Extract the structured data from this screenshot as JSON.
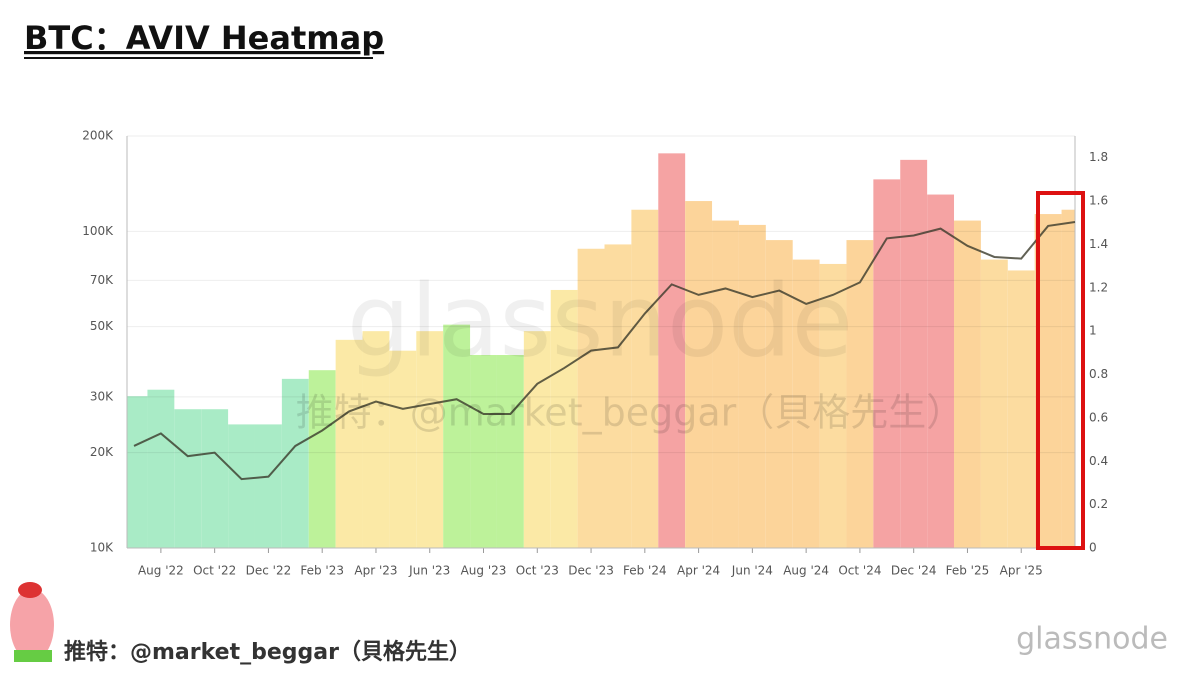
{
  "title": "BTC：AVIV Heatmap",
  "handle": "推特：@market_beggar（貝格先生）",
  "brand": "glassnode",
  "chart_data": {
    "type": "line",
    "x": [
      "2022-07",
      "2022-08",
      "2022-09",
      "2022-10",
      "2022-11",
      "2022-12",
      "2023-01",
      "2023-02",
      "2023-03",
      "2023-04",
      "2023-05",
      "2023-06",
      "2023-07",
      "2023-08",
      "2023-09",
      "2023-10",
      "2023-11",
      "2023-12",
      "2024-01",
      "2024-02",
      "2024-03",
      "2024-04",
      "2024-05",
      "2024-06",
      "2024-07",
      "2024-08",
      "2024-09",
      "2024-10",
      "2024-11",
      "2024-12",
      "2025-01",
      "2025-02",
      "2025-03",
      "2025-04",
      "2025-05",
      "2025-06"
    ],
    "xticks": [
      {
        "value": "2022-08",
        "label": "Aug '22"
      },
      {
        "value": "2022-10",
        "label": "Oct '22"
      },
      {
        "value": "2022-12",
        "label": "Dec '22"
      },
      {
        "value": "2023-02",
        "label": "Feb '23"
      },
      {
        "value": "2023-04",
        "label": "Apr '23"
      },
      {
        "value": "2023-06",
        "label": "Jun '23"
      },
      {
        "value": "2023-08",
        "label": "Aug '23"
      },
      {
        "value": "2023-10",
        "label": "Oct '23"
      },
      {
        "value": "2023-12",
        "label": "Dec '23"
      },
      {
        "value": "2024-02",
        "label": "Feb '24"
      },
      {
        "value": "2024-04",
        "label": "Apr '24"
      },
      {
        "value": "2024-06",
        "label": "Jun '24"
      },
      {
        "value": "2024-08",
        "label": "Aug '24"
      },
      {
        "value": "2024-10",
        "label": "Oct '24"
      },
      {
        "value": "2024-12",
        "label": "Dec '24"
      },
      {
        "value": "2025-02",
        "label": "Feb '25"
      },
      {
        "value": "2025-04",
        "label": "Apr '25"
      }
    ],
    "log_y": true,
    "ylim": [
      10000,
      200000
    ],
    "yticks": [
      {
        "value": 10000,
        "label": "10K"
      },
      {
        "value": 20000,
        "label": "20K"
      },
      {
        "value": 30000,
        "label": "30K"
      },
      {
        "value": 50000,
        "label": "50K"
      },
      {
        "value": 70000,
        "label": "70K"
      },
      {
        "value": 100000,
        "label": "100K"
      },
      {
        "value": 200000,
        "label": "200K"
      }
    ],
    "y2lim": [
      0,
      1.9
    ],
    "y2ticks": [
      0,
      0.2,
      0.4,
      0.6,
      0.8,
      1,
      1.2,
      1.4,
      1.6,
      1.8
    ],
    "grid": true,
    "series": [
      {
        "color": "#3a3a2a",
        "values": [
          21000,
          23000,
          19500,
          20000,
          16500,
          16800,
          21000,
          23500,
          27000,
          29000,
          27500,
          28500,
          29500,
          26500,
          26500,
          33000,
          37000,
          42000,
          43000,
          55000,
          68000,
          63000,
          66000,
          62000,
          65000,
          59000,
          63000,
          69000,
          95000,
          97000,
          102000,
          90000,
          83000,
          82000,
          104000,
          107000
        ]
      },
      {
        "axis": "y2",
        "values": [
          0.7,
          0.73,
          0.64,
          0.64,
          0.57,
          0.57,
          0.78,
          0.82,
          0.96,
          1.0,
          0.91,
          1.0,
          1.03,
          0.89,
          0.89,
          1.0,
          1.19,
          1.38,
          1.4,
          1.56,
          1.82,
          1.6,
          1.51,
          1.49,
          1.42,
          1.33,
          1.31,
          1.42,
          1.7,
          1.79,
          1.63,
          1.51,
          1.33,
          1.28,
          1.54,
          1.56
        ],
        "colors": [
          "#a9ebc6",
          "#a9ebc6",
          "#a9ebc6",
          "#a9ebc6",
          "#a9ebc6",
          "#a9ebc6",
          "#a9ebc6",
          "#bdf29a",
          "#fbe9a6",
          "#fbe9a6",
          "#fbe9a6",
          "#fbe9a6",
          "#bdf29a",
          "#bdf29a",
          "#bdf29a",
          "#fbe9a6",
          "#fbe9a6",
          "#fcdca0",
          "#fcdca0",
          "#fcdca0",
          "#f5a3a3",
          "#fcd49a",
          "#fcd49a",
          "#fcd49a",
          "#fcd49a",
          "#fcd49a",
          "#fcdca0",
          "#fcd49a",
          "#f5a3a3",
          "#f5a3a3",
          "#f5a3a3",
          "#fcd49a",
          "#fcdca0",
          "#fcdca0",
          "#fcd49a",
          "#fcd49a"
        ]
      }
    ]
  }
}
